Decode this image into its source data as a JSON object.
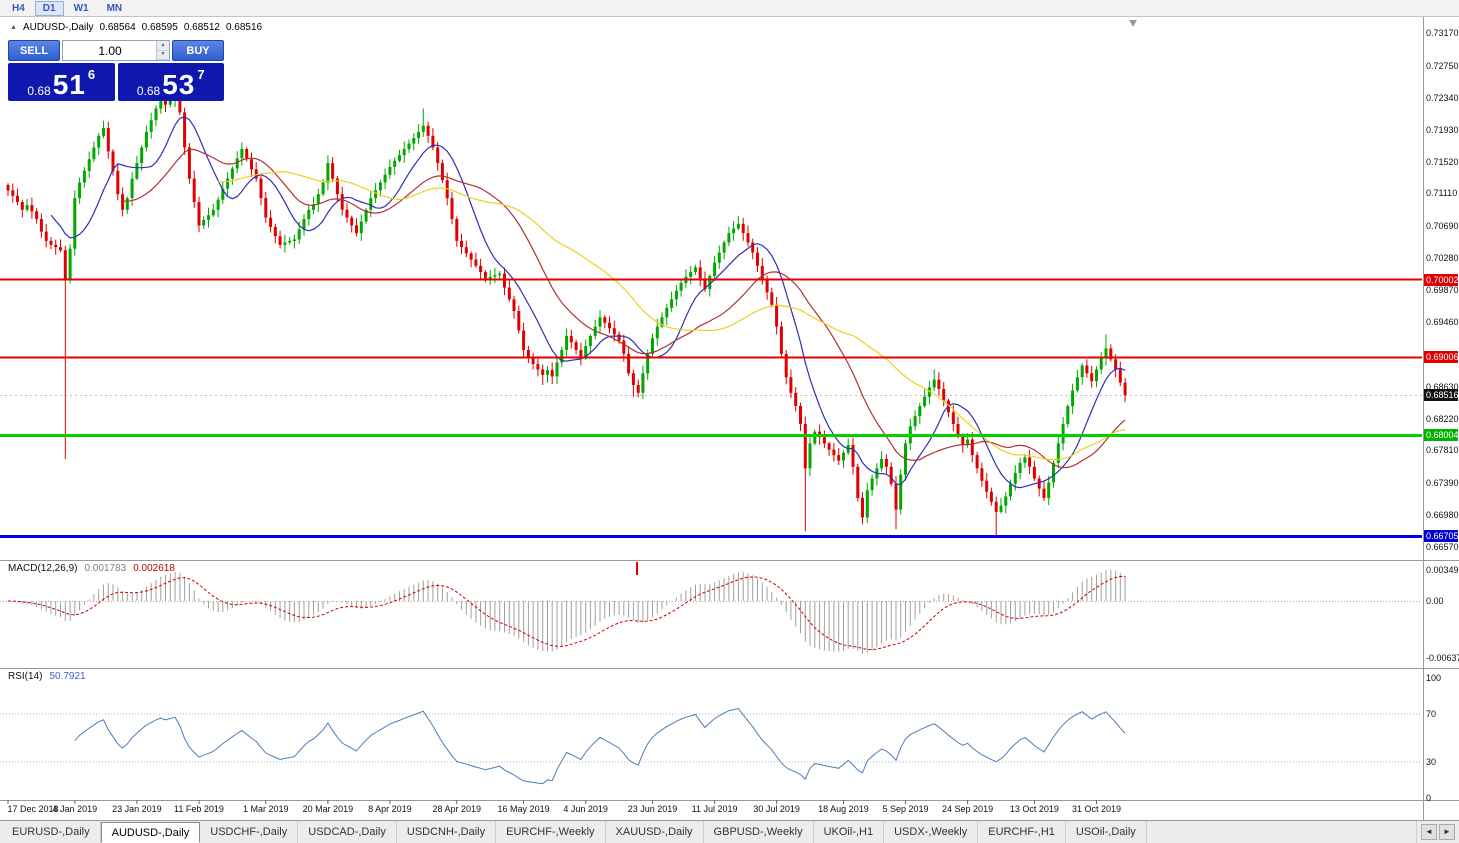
{
  "toolbar": {
    "timeframes": [
      {
        "label": "H4",
        "active": false
      },
      {
        "label": "D1",
        "active": true
      },
      {
        "label": "W1",
        "active": false
      },
      {
        "label": "MN",
        "active": false
      }
    ]
  },
  "header": {
    "symbol": "AUDUSD-,Daily",
    "open": "0.68564",
    "high": "0.68595",
    "low": "0.68512",
    "close": "0.68516"
  },
  "icons": {
    "symbol_marker": "▲",
    "spin_up": "▲",
    "spin_down": "▼",
    "tab_scroll_left": "◄",
    "tab_scroll_right": "►"
  },
  "trade_panel": {
    "sell_label": "SELL",
    "buy_label": "BUY",
    "volume": "1.00",
    "sell_price_small": "0.68",
    "sell_price_big": "51",
    "sell_price_sup": "6",
    "buy_price_small": "0.68",
    "buy_price_big": "53",
    "buy_price_sup": "7"
  },
  "price_axis": {
    "ticks": [
      "0.73170",
      "0.72750",
      "0.72340",
      "0.71930",
      "0.71520",
      "0.71110",
      "0.70690",
      "0.70280",
      "0.69870",
      "0.69460",
      "0.68630",
      "0.68220",
      "0.67810",
      "0.67390",
      "0.66980",
      "0.66570"
    ],
    "badges": [
      {
        "label": "0.70002",
        "value": 0.70002,
        "color": "#e00000"
      },
      {
        "label": "0.69006",
        "value": 0.69006,
        "color": "#e00000"
      },
      {
        "label": "0.68516",
        "value": 0.68516,
        "color": "#111111"
      },
      {
        "label": "0.68004",
        "value": 0.68004,
        "color": "#00b400"
      },
      {
        "label": "0.66705",
        "value": 0.66705,
        "color": "#0000d0"
      }
    ]
  },
  "macd_panel": {
    "label": "MACD(12,26,9)",
    "value_main": "0.001783",
    "value_signal": "0.002618",
    "axis": [
      {
        "label": "0.00349",
        "value": 0.00349
      },
      {
        "label": "0.00",
        "value": 0
      },
      {
        "label": "-0.00637",
        "value": -0.00637
      }
    ]
  },
  "rsi_panel": {
    "label": "RSI(14)",
    "value": "50.7921",
    "axis": [
      {
        "label": "100",
        "value": 100
      },
      {
        "label": "70",
        "value": 70
      },
      {
        "label": "30",
        "value": 30
      },
      {
        "label": "0",
        "value": 0
      }
    ],
    "levels": [
      70,
      30
    ]
  },
  "date_axis": {
    "labels": [
      {
        "text": "17 Dec 2018",
        "index": 0
      },
      {
        "text": "4 Jan 2019",
        "index": 14
      },
      {
        "text": "23 Jan 2019",
        "index": 27
      },
      {
        "text": "11 Feb 2019",
        "index": 40
      },
      {
        "text": "1 Mar 2019",
        "index": 54
      },
      {
        "text": "20 Mar 2019",
        "index": 67
      },
      {
        "text": "8 Apr 2019",
        "index": 80
      },
      {
        "text": "28 Apr 2019",
        "index": 94
      },
      {
        "text": "16 May 2019",
        "index": 108
      },
      {
        "text": "4 Jun 2019",
        "index": 121
      },
      {
        "text": "23 Jun 2019",
        "index": 135
      },
      {
        "text": "11 Jul 2019",
        "index": 148
      },
      {
        "text": "30 Jul 2019",
        "index": 161
      },
      {
        "text": "18 Aug 2019",
        "index": 175
      },
      {
        "text": "5 Sep 2019",
        "index": 188
      },
      {
        "text": "24 Sep 2019",
        "index": 201
      },
      {
        "text": "13 Oct 2019",
        "index": 215
      },
      {
        "text": "31 Oct 2019",
        "index": 228
      }
    ]
  },
  "tabs": {
    "items": [
      {
        "label": "EURUSD-,Daily",
        "active": false
      },
      {
        "label": "AUDUSD-,Daily",
        "active": true
      },
      {
        "label": "USDCHF-,Daily",
        "active": false
      },
      {
        "label": "USDCAD-,Daily",
        "active": false
      },
      {
        "label": "USDCNH-,Daily",
        "active": false
      },
      {
        "label": "EURCHF-,Weekly",
        "active": false
      },
      {
        "label": "XAUUSD-,Daily",
        "active": false
      },
      {
        "label": "GBPUSD-,Weekly",
        "active": false
      },
      {
        "label": "UKOil-,H1",
        "active": false
      },
      {
        "label": "USDX-,Weekly",
        "active": false
      },
      {
        "label": "EURCHF-,H1",
        "active": false
      },
      {
        "label": "USOil-,Daily",
        "active": false
      }
    ]
  },
  "chart_data": {
    "type": "candlestick",
    "symbol": "AUDUSD",
    "timeframe": "Daily",
    "ohlc_display": {
      "open": 0.68564,
      "high": 0.68595,
      "low": 0.68512,
      "close": 0.68516
    },
    "y_axis_range": [
      0.6657,
      0.7317
    ],
    "current_price": 0.68516,
    "first_open": 0.7122,
    "closes": [
      0.7115,
      0.7108,
      0.71,
      0.709,
      0.7096,
      0.7088,
      0.7078,
      0.7062,
      0.705,
      0.7045,
      0.7042,
      0.7038,
      0.7,
      0.704,
      0.7105,
      0.7125,
      0.714,
      0.7155,
      0.717,
      0.7185,
      0.7195,
      0.7165,
      0.714,
      0.711,
      0.709,
      0.7105,
      0.713,
      0.715,
      0.717,
      0.719,
      0.7205,
      0.722,
      0.723,
      0.7225,
      0.7232,
      0.7238,
      0.7215,
      0.717,
      0.713,
      0.71,
      0.707,
      0.7077,
      0.7083,
      0.709,
      0.7103,
      0.7117,
      0.713,
      0.7143,
      0.7156,
      0.7168,
      0.7155,
      0.7142,
      0.713,
      0.7105,
      0.708,
      0.7068,
      0.7056,
      0.7045,
      0.7048,
      0.705,
      0.7052,
      0.7065,
      0.7078,
      0.709,
      0.7097,
      0.711,
      0.7125,
      0.715,
      0.713,
      0.711,
      0.709,
      0.708,
      0.707,
      0.706,
      0.7075,
      0.709,
      0.7105,
      0.7115,
      0.7125,
      0.7135,
      0.7145,
      0.7153,
      0.716,
      0.7168,
      0.7175,
      0.7182,
      0.719,
      0.7198,
      0.7185,
      0.717,
      0.715,
      0.7128,
      0.7105,
      0.7078,
      0.705,
      0.7042,
      0.7034,
      0.7026,
      0.7018,
      0.701,
      0.7002,
      0.7004,
      0.7006,
      0.7008,
      0.699,
      0.6975,
      0.696,
      0.6935,
      0.691,
      0.69,
      0.6892,
      0.6885,
      0.6878,
      0.6884,
      0.6876,
      0.6894,
      0.691,
      0.6928,
      0.692,
      0.691,
      0.69,
      0.6915,
      0.6928,
      0.694,
      0.6952,
      0.6945,
      0.6938,
      0.693,
      0.6922,
      0.6905,
      0.688,
      0.6865,
      0.6855,
      0.688,
      0.6905,
      0.6925,
      0.694,
      0.6952,
      0.6964,
      0.6975,
      0.6986,
      0.6996,
      0.7004,
      0.701,
      0.7016,
      0.7002,
      0.6988,
      0.7005,
      0.7022,
      0.7035,
      0.7048,
      0.706,
      0.7066,
      0.7072,
      0.706,
      0.7048,
      0.7035,
      0.7018,
      0.7,
      0.6984,
      0.6968,
      0.694,
      0.6905,
      0.6875,
      0.6855,
      0.6838,
      0.6815,
      0.6758,
      0.679,
      0.6805,
      0.6798,
      0.679,
      0.6782,
      0.6775,
      0.6768,
      0.6778,
      0.6788,
      0.676,
      0.672,
      0.6695,
      0.673,
      0.6745,
      0.6758,
      0.677,
      0.676,
      0.6738,
      0.6705,
      0.675,
      0.679,
      0.6812,
      0.6825,
      0.6838,
      0.685,
      0.6862,
      0.6872,
      0.686,
      0.6845,
      0.683,
      0.6815,
      0.68,
      0.6788,
      0.6795,
      0.6775,
      0.6758,
      0.6742,
      0.6728,
      0.6715,
      0.6702,
      0.671,
      0.6722,
      0.6738,
      0.6752,
      0.6765,
      0.6772,
      0.676,
      0.6745,
      0.6732,
      0.672,
      0.674,
      0.6765,
      0.679,
      0.6815,
      0.6838,
      0.6858,
      0.6875,
      0.689,
      0.688,
      0.687,
      0.6885,
      0.69,
      0.6912,
      0.6898,
      0.6885,
      0.6868,
      0.6852
    ],
    "wick_overrides": {
      "12": {
        "low": 0.677
      },
      "32": {
        "high": 0.725
      },
      "87": {
        "high": 0.722
      },
      "112": {
        "low": 0.6865
      },
      "114": {
        "low": 0.6866
      },
      "131": {
        "low": 0.685
      },
      "153": {
        "high": 0.7082
      },
      "167": {
        "low": 0.6677
      },
      "179": {
        "low": 0.6686
      },
      "186": {
        "low": 0.668
      },
      "194": {
        "high": 0.6885
      },
      "207": {
        "low": 0.6671
      },
      "230": {
        "high": 0.693
      }
    },
    "hlines": [
      {
        "value": 0.70002,
        "color": "#e80000",
        "width": 2
      },
      {
        "value": 0.69006,
        "color": "#e80000",
        "width": 2
      },
      {
        "value": 0.68004,
        "color": "#00d200",
        "width": 3
      },
      {
        "value": 0.66705,
        "color": "#0000e8",
        "width": 3
      }
    ],
    "ma": [
      {
        "period": 10,
        "color": "#2e2eb8"
      },
      {
        "period": 25,
        "color": "#b43030"
      },
      {
        "period": 45,
        "color": "#f0d020"
      }
    ],
    "colors": {
      "up": "#00a800",
      "down": "#e00000"
    },
    "indicators": {
      "macd": {
        "fast": 12,
        "slow": 26,
        "signal": 9,
        "histogram_color": "#a0a0a0",
        "signal_color": "#cc0000"
      },
      "rsi": {
        "period": 14,
        "color": "#4a7ebb"
      }
    }
  }
}
